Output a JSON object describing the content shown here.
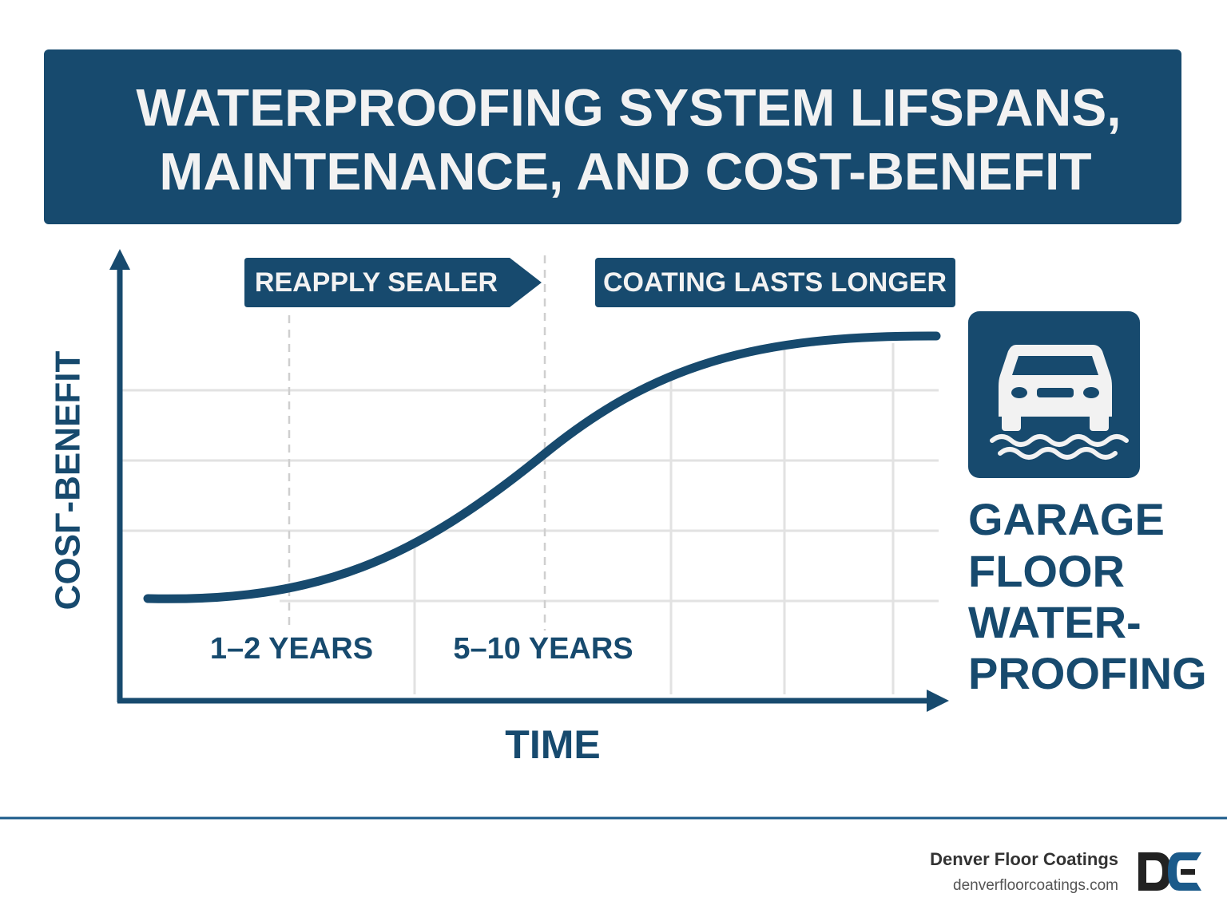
{
  "header": {
    "title": [
      "WATERPROOFING SYSTEM LIFSPANS,",
      "MAINTENANCE, AND COST-BENEFIT"
    ]
  },
  "chart": {
    "y_axis_label": "COSΓ-BENEFIT",
    "x_axis_label": "TIME",
    "callouts": [
      "REAPPLY SEALER",
      "COATING LASTS LONGER"
    ],
    "periods": [
      "1–2 YEARS",
      "5–10 YEARS"
    ]
  },
  "side_title": [
    "GARAGE",
    "FLOOR",
    "WATER-",
    "PROOFING"
  ],
  "footer": {
    "company": "Denver Floor Coatings",
    "website": "denverfloorcoatings.com"
  }
}
